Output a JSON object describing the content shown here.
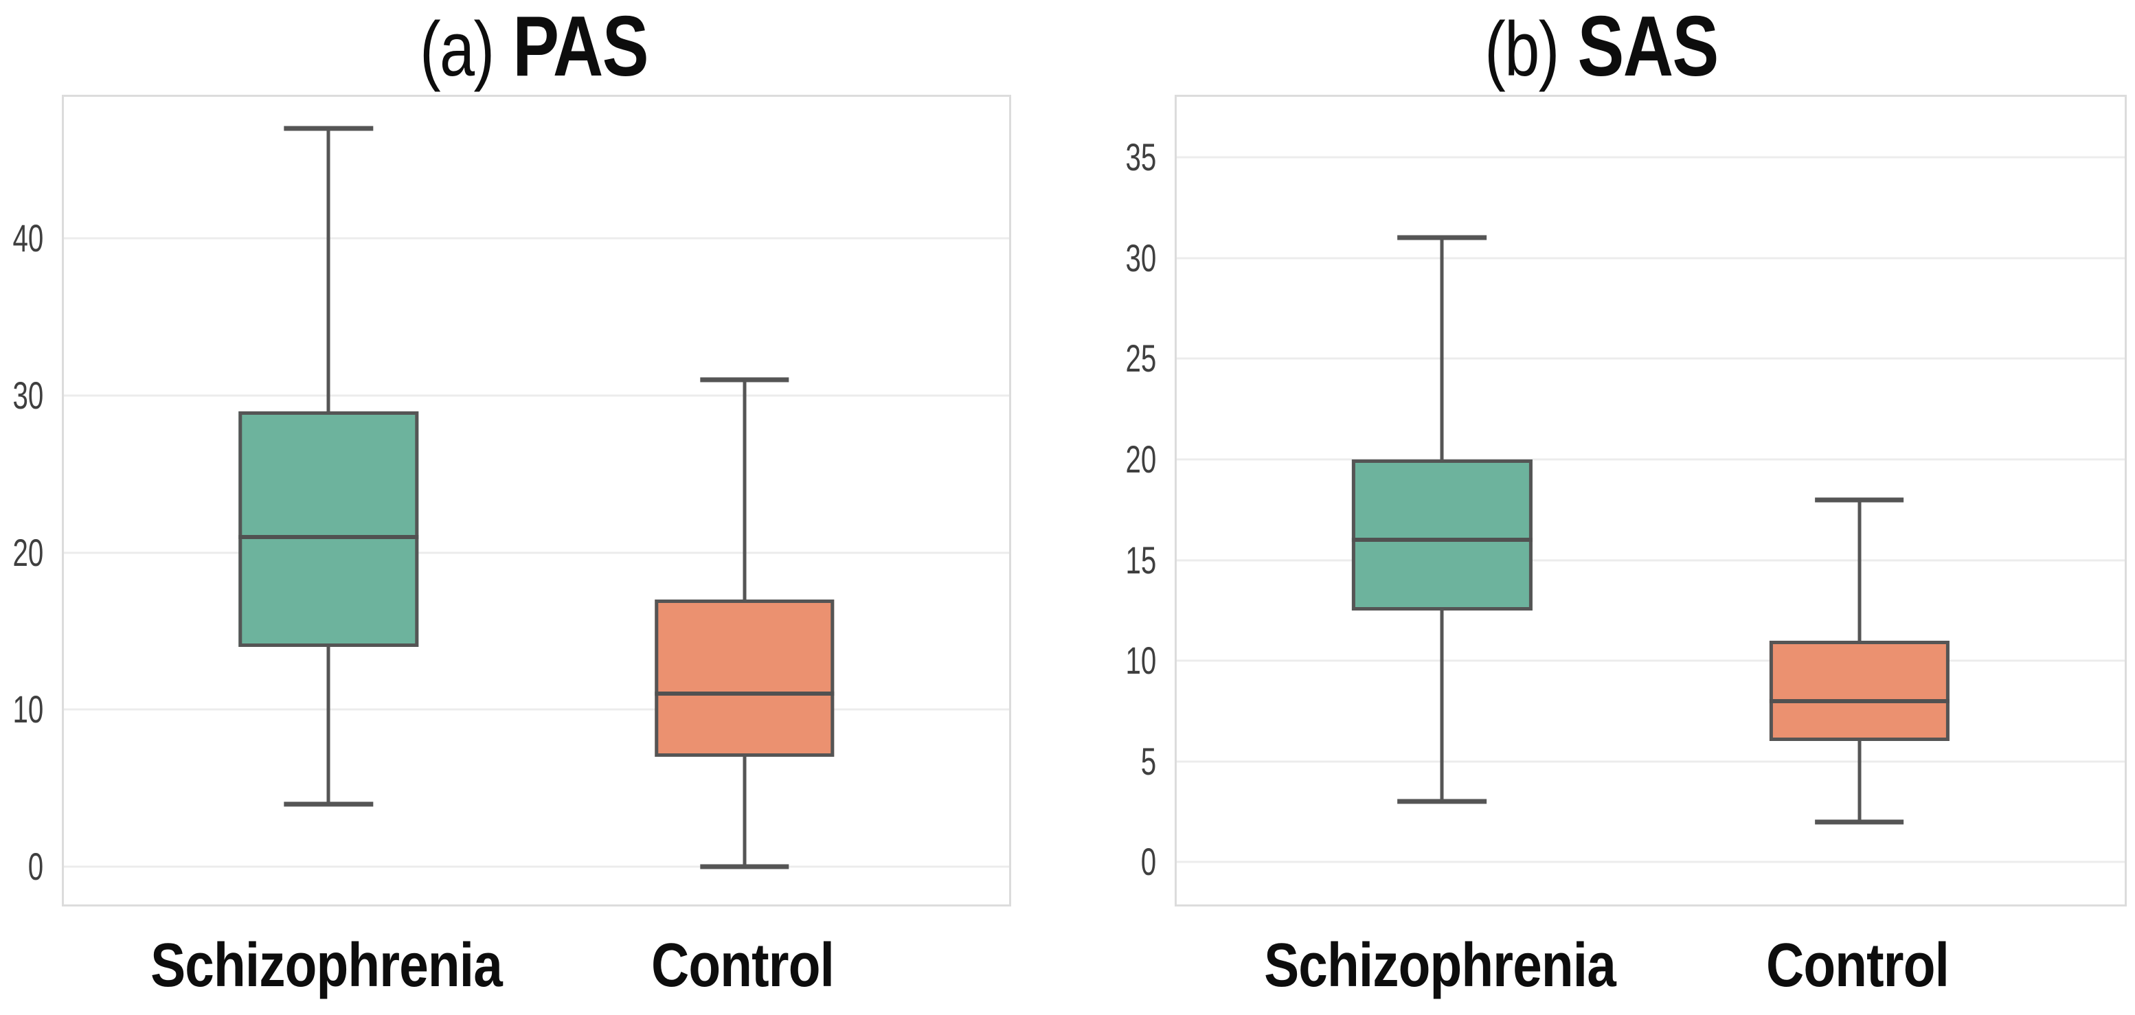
{
  "figure": {
    "background": "#ffffff"
  },
  "chart_data": [
    {
      "type": "box",
      "title_prefix": "(a)",
      "title": "PAS",
      "categories": [
        "Schizophrenia",
        "Control"
      ],
      "yticks": [
        0,
        10,
        20,
        30,
        40
      ],
      "ylim": [
        -2.4,
        49
      ],
      "grid": true,
      "legend": false,
      "series": [
        {
          "name": "Schizophrenia",
          "color": "#6db39d",
          "whisker_min": 4,
          "q1": 14,
          "median": 21,
          "q3": 29,
          "whisker_max": 47
        },
        {
          "name": "Control",
          "color": "#eb9170",
          "whisker_min": 0,
          "q1": 7,
          "median": 11,
          "q3": 17,
          "whisker_max": 31
        }
      ]
    },
    {
      "type": "box",
      "title_prefix": "(b)",
      "title": "SAS",
      "categories": [
        "Schizophrenia",
        "Control"
      ],
      "yticks": [
        0,
        5,
        10,
        15,
        20,
        25,
        30,
        35
      ],
      "ylim": [
        -2.1,
        38
      ],
      "grid": true,
      "legend": false,
      "series": [
        {
          "name": "Schizophrenia",
          "color": "#6db39d",
          "whisker_min": 3,
          "q1": 12.5,
          "median": 16,
          "q3": 20,
          "whisker_max": 31
        },
        {
          "name": "Control",
          "color": "#eb9170",
          "whisker_min": 2,
          "q1": 6,
          "median": 8,
          "q3": 11,
          "whisker_max": 18
        }
      ]
    }
  ],
  "colors": {
    "box_teal": "#6db39d",
    "box_orange": "#eb9170",
    "box_stroke": "#555555",
    "gridline": "#ececec",
    "plot_border": "#dcdcdc",
    "tick_label": "#3f3f3f",
    "text": "#0d0d0d"
  }
}
